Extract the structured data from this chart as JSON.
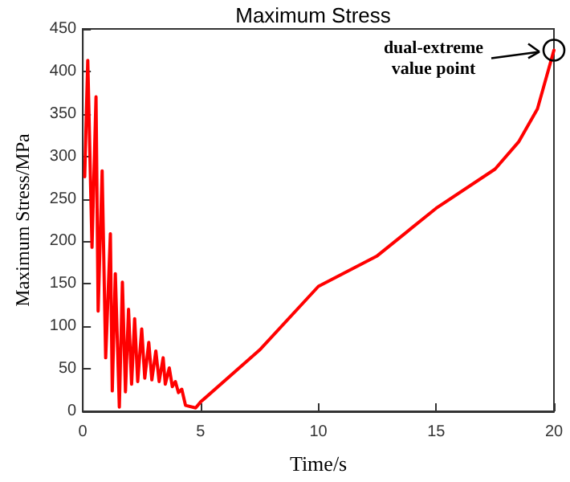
{
  "chart_data": {
    "type": "line",
    "title": "Maximum Stress",
    "xlabel": "Time/s",
    "ylabel": "Maximum Stress/MPa",
    "xlim": [
      0,
      20
    ],
    "xticks": [
      0,
      5,
      10,
      15,
      20
    ],
    "ylim": [
      0,
      450
    ],
    "yticks": [
      0,
      50,
      100,
      150,
      200,
      250,
      300,
      350,
      400,
      450
    ],
    "grid": false,
    "marker": "none",
    "line_style": "solid",
    "annotations": [
      "dual-extreme value point"
    ],
    "series": [
      {
        "color": "#ff0000",
        "x": [
          0.08,
          0.21,
          0.39,
          0.56,
          0.65,
          0.82,
          0.97,
          1.17,
          1.25,
          1.38,
          1.55,
          1.68,
          1.81,
          1.94,
          2.07,
          2.2,
          2.33,
          2.5,
          2.63,
          2.8,
          2.93,
          3.1,
          3.24,
          3.41,
          3.5,
          3.67,
          3.8,
          3.93,
          4.06,
          4.2,
          4.36,
          4.79,
          5,
          7.5,
          10,
          12.5,
          15,
          17.5,
          18.5,
          19.3,
          20
        ],
        "values": [
          276,
          413,
          193,
          370,
          118,
          283,
          63,
          209,
          24,
          162,
          5,
          152,
          23,
          120,
          32,
          109,
          35,
          97,
          39,
          81,
          37,
          71,
          35,
          63,
          32,
          51,
          29,
          35,
          22,
          26,
          7,
          4,
          11,
          72,
          147,
          183,
          239,
          285,
          317,
          356,
          425
        ]
      }
    ]
  }
}
